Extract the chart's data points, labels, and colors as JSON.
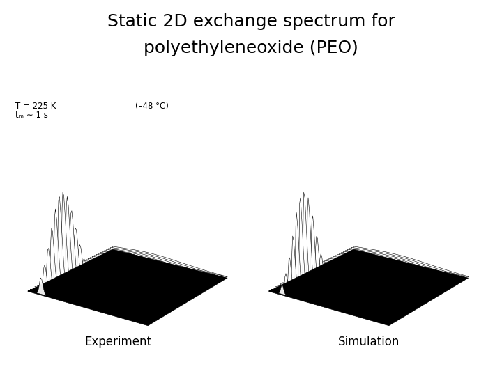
{
  "title_line1": "Static 2D exchange spectrum for",
  "title_line2": "polyethyleneoxide (PEO)",
  "title_fontsize": 18,
  "label_experiment": "Experiment",
  "label_simulation": "Simulation",
  "label_temp": "T = 225 K",
  "label_tm": "tₘ ∼ 1 s",
  "label_temp2": "(–48 °C)",
  "label_fontsize": 12,
  "annotation_fontsize": 8.5,
  "background_color": "#ffffff",
  "n_slices": 40,
  "elev": 20,
  "azim": -55,
  "dist": 9.5
}
